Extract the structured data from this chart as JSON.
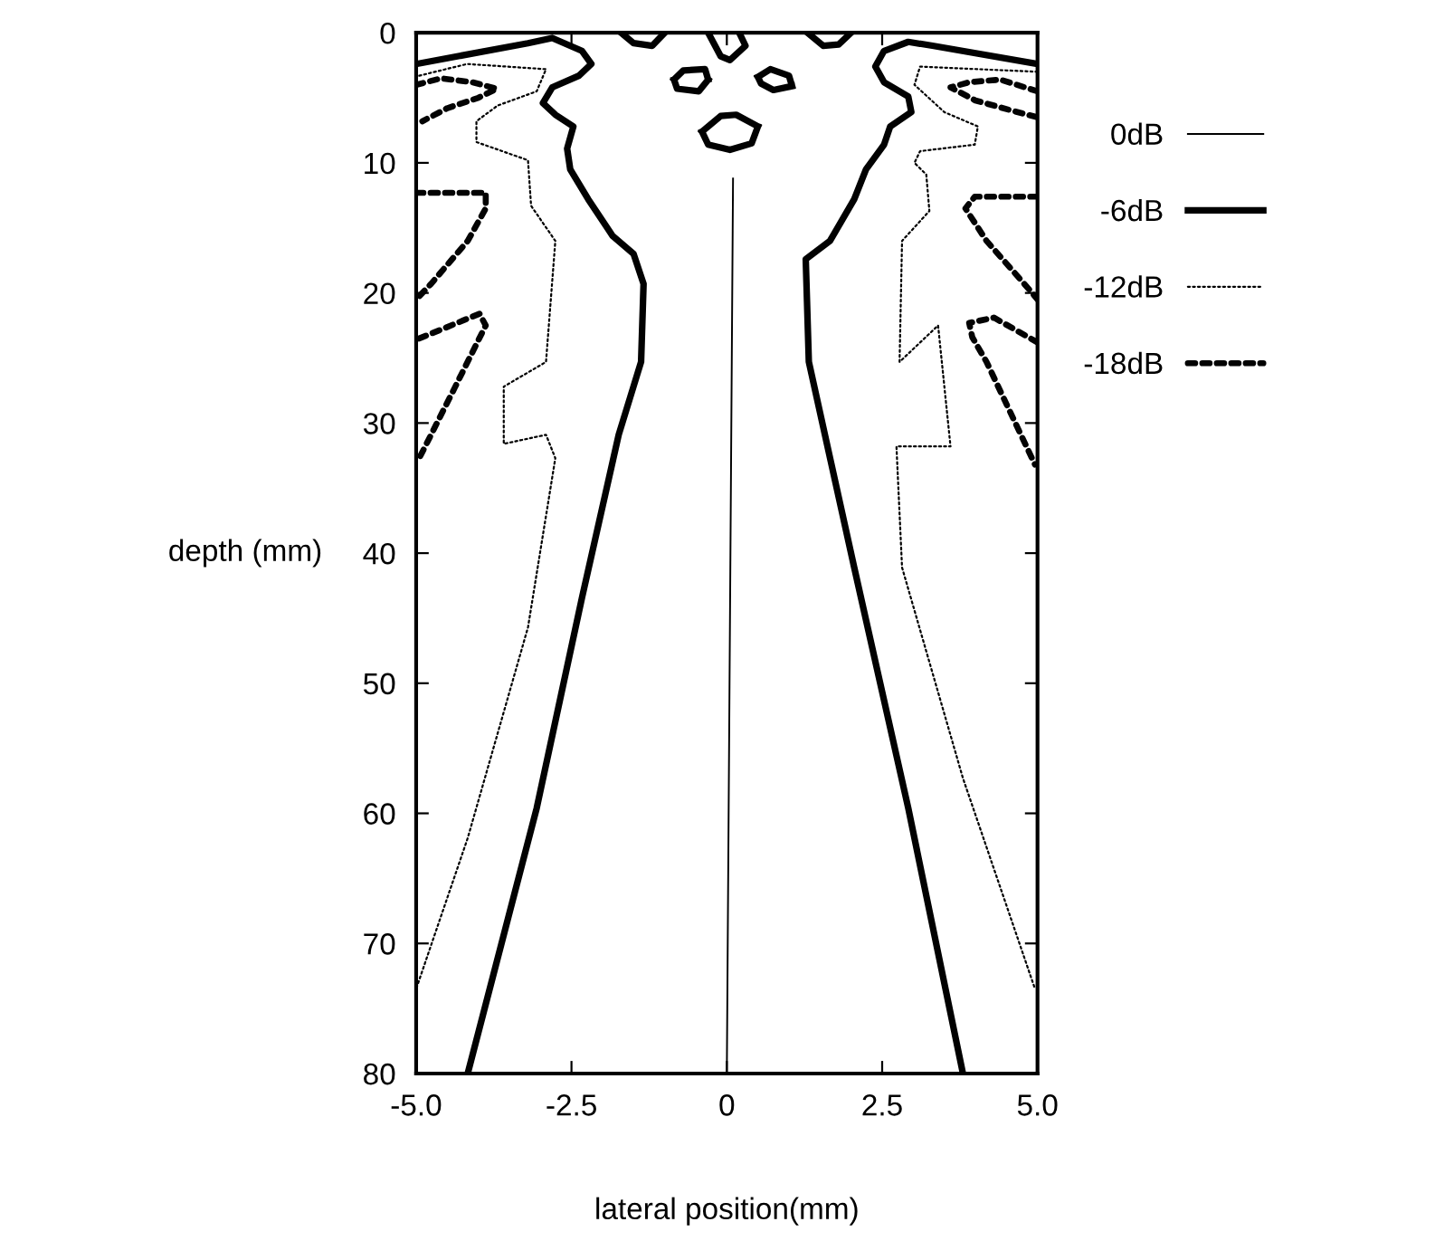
{
  "chart_data": {
    "type": "line",
    "xlabel": "lateral position(mm)",
    "ylabel": "depth (mm)",
    "xlim": [
      -5,
      5
    ],
    "ylim": [
      80,
      0
    ],
    "xticks": [
      {
        "value": -5,
        "label": "-5.0"
      },
      -2.5,
      0,
      2.5,
      {
        "value": 5,
        "label": "5.0"
      }
    ],
    "yticks": [
      0,
      10,
      20,
      30,
      40,
      50,
      60,
      70,
      80
    ],
    "grid": false,
    "legend": "right",
    "series": [
      {
        "name": "0dB",
        "color": "#000000",
        "line_style": "solid",
        "x": [
          0.1,
          0
        ],
        "values": [
          11.2,
          80
        ]
      },
      {
        "name": "-6dB",
        "color": "#010101",
        "line_style": "solid",
        "x": [
          -5.0,
          -3.2,
          -2.81,
          -2.33,
          -2.18,
          -2.38,
          -2.81,
          -2.96,
          -2.76,
          -2.47,
          -2.57,
          -2.52,
          -2.23,
          -1.84,
          -1.5,
          -1.34,
          -1.38,
          -1.74,
          -2.33,
          -3.06,
          -4.17,
          null,
          5.0,
          3.31,
          2.92,
          2.53,
          2.39,
          2.53,
          2.92,
          2.97,
          2.63,
          2.53,
          2.24,
          2.05,
          1.66,
          1.27,
          1.32,
          2.05,
          2.92,
          3.8,
          null,
          -0.85,
          -0.7,
          -0.35,
          -0.3,
          null,
          -0.85,
          -0.8,
          -0.45,
          -0.3,
          null,
          0.5,
          0.7,
          1.0,
          1.05,
          null,
          0.5,
          0.55,
          0.75,
          1.05,
          null,
          -0.4,
          -0.1,
          0.15,
          0.5,
          null,
          -0.4,
          -0.3,
          0.05,
          0.4,
          0.5,
          null,
          -0.3,
          -0.1,
          0.05,
          0.3,
          0.2,
          null,
          -1.7,
          -1.5,
          -1.2,
          -1.0,
          null,
          1.3,
          1.55,
          1.8,
          2.0
        ],
        "values": [
          2.4,
          0.8,
          0.4,
          1.4,
          2.4,
          3.3,
          4.2,
          5.4,
          6.3,
          7.2,
          8.9,
          10.5,
          12.8,
          15.6,
          17.0,
          19.3,
          25.3,
          30.9,
          43.4,
          59.6,
          80,
          null,
          2.4,
          1.0,
          0.7,
          1.4,
          2.6,
          3.8,
          4.9,
          6.1,
          7.2,
          8.6,
          10.5,
          12.8,
          16.0,
          17.4,
          25.3,
          41.1,
          59.6,
          80,
          null,
          3.6,
          2.9,
          2.8,
          3.6,
          null,
          3.6,
          4.3,
          4.5,
          3.6,
          null,
          3.4,
          2.8,
          3.3,
          4.1,
          null,
          3.4,
          3.9,
          4.4,
          4.1,
          null,
          7.6,
          6.4,
          6.3,
          7.2,
          null,
          7.6,
          8.6,
          9.0,
          8.5,
          7.2,
          null,
          0,
          1.8,
          2.1,
          1.0,
          0,
          null,
          0,
          0.8,
          1.0,
          0,
          null,
          0,
          1.0,
          0.9,
          0
        ]
      },
      {
        "name": "-12dB",
        "color": "#020202",
        "line_style": "dotted",
        "x": [
          -4.95,
          -4.18,
          -2.91,
          -3.06,
          -3.69,
          -4.03,
          -4.03,
          -3.2,
          -3.15,
          -2.76,
          -2.91,
          -3.59,
          -3.59,
          -2.91,
          -2.76,
          -3.2,
          -4.17,
          -5.0,
          null,
          5.0,
          3.11,
          3.02,
          3.5,
          4.04,
          3.99,
          3.11,
          3.02,
          3.21,
          3.26,
          2.82,
          2.78,
          3.4,
          3.6,
          2.73,
          2.82,
          3.8,
          4.96
        ],
        "values": [
          3.3,
          2.4,
          2.8,
          4.5,
          5.6,
          6.8,
          8.4,
          9.8,
          13.3,
          16.0,
          25.3,
          27.2,
          31.6,
          30.9,
          32.7,
          45.7,
          61.9,
          73.5,
          null,
          3.0,
          2.6,
          4.0,
          6.1,
          7.2,
          8.6,
          9.1,
          10.0,
          10.9,
          13.7,
          16.0,
          25.3,
          22.5,
          31.8,
          31.8,
          41.1,
          57.3,
          73.5
        ]
      },
      {
        "name": "-18dB",
        "color": "#030303",
        "line_style": "dashed",
        "x": [
          -5.0,
          -4.6,
          -4.1,
          -3.7,
          -4.0,
          -4.5,
          -4.9,
          null,
          -5.0,
          -3.88,
          -3.88,
          -4.17,
          -4.76,
          -5.0,
          null,
          -4.95,
          -3.98,
          -3.88,
          -4.37,
          -4.95,
          null,
          5.0,
          4.4,
          3.9,
          3.6,
          4.0,
          4.6,
          5.0,
          null,
          5.0,
          3.99,
          3.84,
          4.18,
          4.86,
          5.0,
          null,
          5.0,
          4.3,
          3.9,
          3.95,
          4.18,
          4.96
        ],
        "values": [
          4.0,
          3.5,
          3.8,
          4.3,
          5.0,
          5.8,
          6.8,
          null,
          12.3,
          12.3,
          13.5,
          16.0,
          19.3,
          20.5,
          null,
          23.5,
          21.6,
          22.5,
          27.2,
          32.7,
          null,
          4.5,
          3.6,
          3.8,
          4.2,
          5.2,
          6.0,
          6.5,
          null,
          12.6,
          12.6,
          13.5,
          16.0,
          19.7,
          20.5,
          null,
          23.8,
          21.9,
          22.3,
          23.4,
          25.3,
          33.2
        ]
      }
    ]
  }
}
